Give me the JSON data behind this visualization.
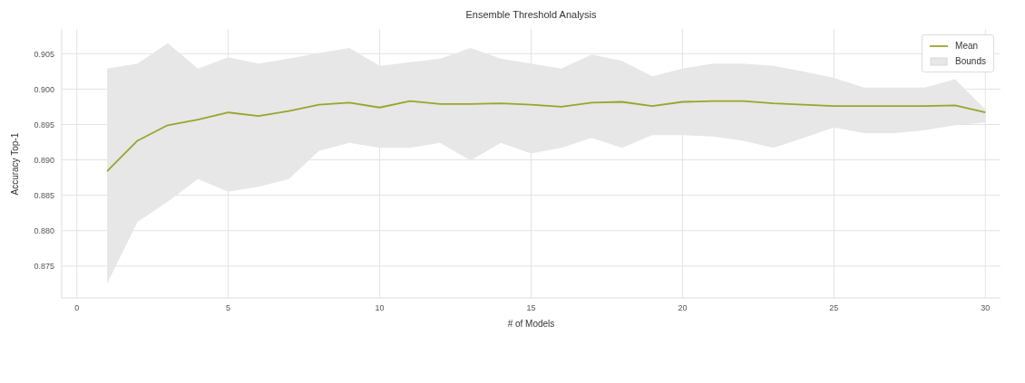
{
  "chart_data": {
    "type": "line",
    "title": "Ensemble Threshold Analysis",
    "xlabel": "# of Models",
    "ylabel": "Accuracy Top-1",
    "x": [
      1,
      2,
      3,
      4,
      5,
      6,
      7,
      8,
      9,
      10,
      11,
      12,
      13,
      14,
      15,
      16,
      17,
      18,
      19,
      20,
      21,
      22,
      23,
      24,
      25,
      26,
      27,
      28,
      29,
      30
    ],
    "series": [
      {
        "name": "Mean",
        "color": "#9aa52b",
        "values": [
          0.8884,
          0.8927,
          0.8949,
          0.8957,
          0.8967,
          0.8962,
          0.8969,
          0.8978,
          0.8981,
          0.8974,
          0.8983,
          0.8979,
          0.8979,
          0.898,
          0.8978,
          0.8975,
          0.8981,
          0.8982,
          0.8976,
          0.8982,
          0.8983,
          0.8983,
          0.898,
          0.8978,
          0.8976,
          0.8976,
          0.8976,
          0.8976,
          0.8977,
          0.8967
        ],
        "lower": [
          0.8725,
          0.8812,
          0.8841,
          0.8873,
          0.8855,
          0.8862,
          0.8873,
          0.8913,
          0.8924,
          0.8917,
          0.8917,
          0.8924,
          0.8899,
          0.8924,
          0.8909,
          0.8917,
          0.8931,
          0.8917,
          0.8935,
          0.8935,
          0.8933,
          0.8927,
          0.8917,
          0.8931,
          0.8946,
          0.8938,
          0.8938,
          0.8942,
          0.8949,
          0.8953
        ],
        "upper": [
          0.9029,
          0.9036,
          0.9065,
          0.9029,
          0.9045,
          0.9036,
          0.9043,
          0.9051,
          0.9058,
          0.9033,
          0.9038,
          0.9043,
          0.9058,
          0.9043,
          0.9036,
          0.9029,
          0.9049,
          0.904,
          0.9018,
          0.9029,
          0.9036,
          0.9036,
          0.9033,
          0.9025,
          0.9016,
          0.9002,
          0.9002,
          0.9002,
          0.9014,
          0.8971
        ]
      }
    ],
    "annotations": [
      "Bounds"
    ],
    "xlim": [
      -0.5,
      30.5
    ],
    "xticks": [
      0,
      5,
      10,
      15,
      20,
      25,
      30
    ],
    "ylim": [
      0.8705,
      0.9085
    ],
    "yticks": [
      {
        "value": 0.875,
        "label": "0.875"
      },
      {
        "value": 0.88,
        "label": "0.880"
      },
      {
        "value": 0.885,
        "label": "0.885"
      },
      {
        "value": 0.89,
        "label": "0.890"
      },
      {
        "value": 0.895,
        "label": "0.895"
      },
      {
        "value": 0.9,
        "label": "0.900"
      },
      {
        "value": 0.905,
        "label": "0.905"
      }
    ],
    "grid": true,
    "legend": "top right",
    "marker": "none",
    "line_style": "solid"
  }
}
